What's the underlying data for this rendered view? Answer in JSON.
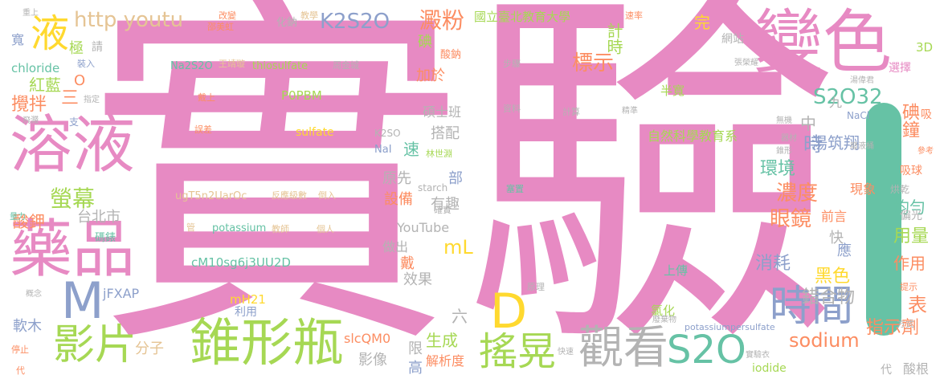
{
  "palette": {
    "pink": "#e78ac3",
    "purple": "#8da0cb",
    "green": "#a6d854",
    "yellow": "#ffd92f",
    "orange": "#fc8d62",
    "teal": "#66c2a5",
    "tan": "#e5c494",
    "gray": "#b3b3b3"
  },
  "words": [
    {
      "text": "實驗",
      "color": "pink"
    },
    {
      "text": "變色",
      "color": "pink"
    },
    {
      "text": "溶液",
      "color": "pink"
    },
    {
      "text": "藥品",
      "color": "pink"
    },
    {
      "text": "錐形瓶",
      "color": "green"
    },
    {
      "text": "液",
      "color": "yellow"
    },
    {
      "text": "M",
      "color": "purple"
    },
    {
      "text": "D",
      "color": "yellow"
    },
    {
      "text": "S2O",
      "color": "teal"
    },
    {
      "text": "時間",
      "color": "purple"
    },
    {
      "text": "觀看",
      "color": "gray"
    },
    {
      "text": "搖晃",
      "color": "green"
    },
    {
      "text": "影片",
      "color": "green"
    },
    {
      "text": "http youtu",
      "color": "tan"
    },
    {
      "text": "K2S2O",
      "color": "purple"
    },
    {
      "text": "澱粉",
      "color": "orange"
    },
    {
      "text": "國立臺北教育大學",
      "color": "green"
    },
    {
      "text": "計時",
      "color": "green"
    },
    {
      "text": "標示",
      "color": "orange"
    },
    {
      "text": "S2O32",
      "color": "teal"
    },
    {
      "text": "濃度",
      "color": "orange"
    },
    {
      "text": "眼鏡",
      "color": "orange"
    },
    {
      "text": "環境",
      "color": "teal"
    },
    {
      "text": "自然科學教育系",
      "color": "green"
    },
    {
      "text": "碘鐘",
      "color": "orange"
    },
    {
      "text": "湯筑翔",
      "color": "purple"
    },
    {
      "text": "均勻",
      "color": "teal"
    },
    {
      "text": "用量",
      "color": "green"
    },
    {
      "text": "作用",
      "color": "orange"
    },
    {
      "text": "表",
      "color": "orange"
    },
    {
      "text": "指示劑",
      "color": "orange"
    },
    {
      "text": "sodium",
      "color": "orange"
    },
    {
      "text": "錯合物",
      "color": "gray"
    },
    {
      "text": "黑色",
      "color": "yellow"
    },
    {
      "text": "消耗",
      "color": "purple"
    },
    {
      "text": "紅藍",
      "color": "green"
    },
    {
      "text": "攪拌",
      "color": "orange"
    },
    {
      "text": "螢幕",
      "color": "green"
    },
    {
      "text": "酸鉀",
      "color": "orange"
    },
    {
      "text": "台北市",
      "color": "gray"
    },
    {
      "text": "軟木",
      "color": "purple"
    },
    {
      "text": "分子",
      "color": "tan"
    },
    {
      "text": "影像",
      "color": "gray"
    },
    {
      "text": "生成",
      "color": "green"
    },
    {
      "text": "解析度",
      "color": "orange"
    },
    {
      "text": "設備",
      "color": "orange"
    },
    {
      "text": "有趣",
      "color": "gray"
    },
    {
      "text": "原先",
      "color": "gray"
    },
    {
      "text": "mL",
      "color": "yellow"
    },
    {
      "text": "效果",
      "color": "gray"
    },
    {
      "text": "YouTube",
      "color": "gray"
    },
    {
      "text": "做出",
      "color": "gray"
    },
    {
      "text": "碩士班",
      "color": "gray"
    },
    {
      "text": "搭配",
      "color": "gray"
    },
    {
      "text": "加於",
      "color": "orange"
    },
    {
      "text": "P0PBM",
      "color": "green"
    },
    {
      "text": "thiosulfate",
      "color": "green"
    },
    {
      "text": "Na2S2O",
      "color": "teal"
    },
    {
      "text": "sulfate",
      "color": "yellow"
    },
    {
      "text": "ugT5n2UarOc",
      "color": "tan"
    },
    {
      "text": "potassium",
      "color": "teal"
    },
    {
      "text": "cM10sg6j3UU2D",
      "color": "teal"
    },
    {
      "text": "mH21",
      "color": "yellow"
    },
    {
      "text": "jFXAP",
      "color": "purple"
    },
    {
      "text": "slcQM0",
      "color": "orange"
    },
    {
      "text": "chloride",
      "color": "teal"
    },
    {
      "text": "半寬",
      "color": "green"
    },
    {
      "text": "上傳",
      "color": "teal"
    },
    {
      "text": "前言",
      "color": "orange"
    },
    {
      "text": "現象",
      "color": "orange"
    },
    {
      "text": "快",
      "color": "gray"
    },
    {
      "text": "應",
      "color": "purple"
    },
    {
      "text": "中",
      "color": "gray"
    },
    {
      "text": "時",
      "color": "purple"
    },
    {
      "text": "速",
      "color": "teal"
    },
    {
      "text": "部",
      "color": "purple"
    },
    {
      "text": "三",
      "color": "orange"
    },
    {
      "text": "極",
      "color": "green"
    },
    {
      "text": "請",
      "color": "gray"
    },
    {
      "text": "寬",
      "color": "purple"
    },
    {
      "text": "碘",
      "color": "green"
    },
    {
      "text": "酸鈉",
      "color": "orange"
    },
    {
      "text": "完",
      "color": "yellow"
    },
    {
      "text": "網站",
      "color": "gray"
    },
    {
      "text": "3D",
      "color": "green"
    },
    {
      "text": "選擇",
      "color": "pink"
    },
    {
      "text": "NaCl",
      "color": "purple"
    },
    {
      "text": "吸",
      "color": "orange"
    },
    {
      "text": "吸球",
      "color": "orange"
    },
    {
      "text": "烘乾",
      "color": "gray"
    },
    {
      "text": "偏光",
      "color": "gray"
    },
    {
      "text": "氯化",
      "color": "green"
    },
    {
      "text": "iodide",
      "color": "green"
    },
    {
      "text": "potassiumpersulfate",
      "color": "purple"
    },
    {
      "text": "高",
      "color": "purple"
    },
    {
      "text": "限",
      "color": "gray"
    },
    {
      "text": "戴",
      "color": "orange"
    },
    {
      "text": "利用",
      "color": "purple"
    },
    {
      "text": "六",
      "color": "gray"
    },
    {
      "text": "代",
      "color": "gray"
    },
    {
      "text": "酸根",
      "color": "gray"
    },
    {
      "text": "方式",
      "color": "gray"
    },
    {
      "text": "代",
      "color": "orange"
    },
    {
      "text": "K2SO",
      "color": "gray"
    },
    {
      "text": "NaI",
      "color": "purple"
    },
    {
      "text": "starch",
      "color": "gray"
    },
    {
      "text": "化鈉",
      "color": "gray"
    },
    {
      "text": "碼錶",
      "color": "teal"
    },
    {
      "text": "九",
      "color": "gray"
    },
    {
      "text": "O",
      "color": "orange"
    },
    {
      "text": "支",
      "color": "purple"
    },
    {
      "text": "速率",
      "color": "orange"
    },
    {
      "text": "改變",
      "color": "orange"
    },
    {
      "text": "邵美虹",
      "color": "orange"
    },
    {
      "text": "教學",
      "color": "tan"
    },
    {
      "text": "王靖璇",
      "color": "tan"
    },
    {
      "text": "周金城",
      "color": "gray"
    },
    {
      "text": "反應級數",
      "color": "tan"
    },
    {
      "text": "倒入",
      "color": "tan"
    },
    {
      "text": "教師",
      "color": "tan"
    },
    {
      "text": "個人",
      "color": "tan"
    },
    {
      "text": "管",
      "color": "tan"
    },
    {
      "text": "戴上",
      "color": "orange"
    },
    {
      "text": "誤差",
      "color": "orange"
    },
    {
      "text": "林世淵",
      "color": "green"
    },
    {
      "text": "確實",
      "color": "gray"
    },
    {
      "text": "步驟",
      "color": "gray"
    },
    {
      "text": "資料",
      "color": "gray"
    },
    {
      "text": "計算",
      "color": "gray"
    },
    {
      "text": "塞置",
      "color": "teal"
    },
    {
      "text": "精準",
      "color": "gray"
    },
    {
      "text": "無機",
      "color": "gray"
    },
    {
      "text": "器材",
      "color": "gray"
    },
    {
      "text": "錐形",
      "color": "gray"
    },
    {
      "text": "廢液桶",
      "color": "gray"
    },
    {
      "text": "張榮耀",
      "color": "gray"
    },
    {
      "text": "湯偉君",
      "color": "gray"
    },
    {
      "text": "裝入",
      "color": "purple"
    },
    {
      "text": "指定",
      "color": "gray"
    },
    {
      "text": "飛濺",
      "color": "gray"
    },
    {
      "text": "量力",
      "color": "teal"
    },
    {
      "text": "概念",
      "color": "gray"
    },
    {
      "text": "停止",
      "color": "orange"
    },
    {
      "text": "原理",
      "color": "gray"
    },
    {
      "text": "廢棄物",
      "color": "gray"
    },
    {
      "text": "實驗衣",
      "color": "gray"
    },
    {
      "text": "快速",
      "color": "gray"
    },
    {
      "text": "提示",
      "color": "orange"
    },
    {
      "text": "參考",
      "color": "orange"
    },
    {
      "text": "重上",
      "color": "gray"
    }
  ]
}
